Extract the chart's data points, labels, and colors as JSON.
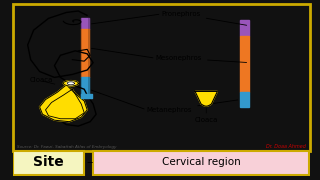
{
  "bg_outer": "#111111",
  "bg_inner": "#ffffff",
  "border_color": "#ccaa00",
  "bottom_bar_bg": "#f8d0d8",
  "bottom_bar_label_bg": "#f5f5c0",
  "bottom_site_text": "Site",
  "bottom_region_text": "Cervical region",
  "colors": {
    "purple": "#9955bb",
    "orange": "#ee7722",
    "blue": "#3399cc",
    "yellow": "#ffdd00",
    "yellow2": "#ffcc00",
    "black": "#111111",
    "dark_yellow": "#cc9900"
  },
  "source_text": "Source: Dr. Fawzi- Sabattah Atlas of Embryology",
  "credit_text": "Dr. Doaa Ahmed"
}
